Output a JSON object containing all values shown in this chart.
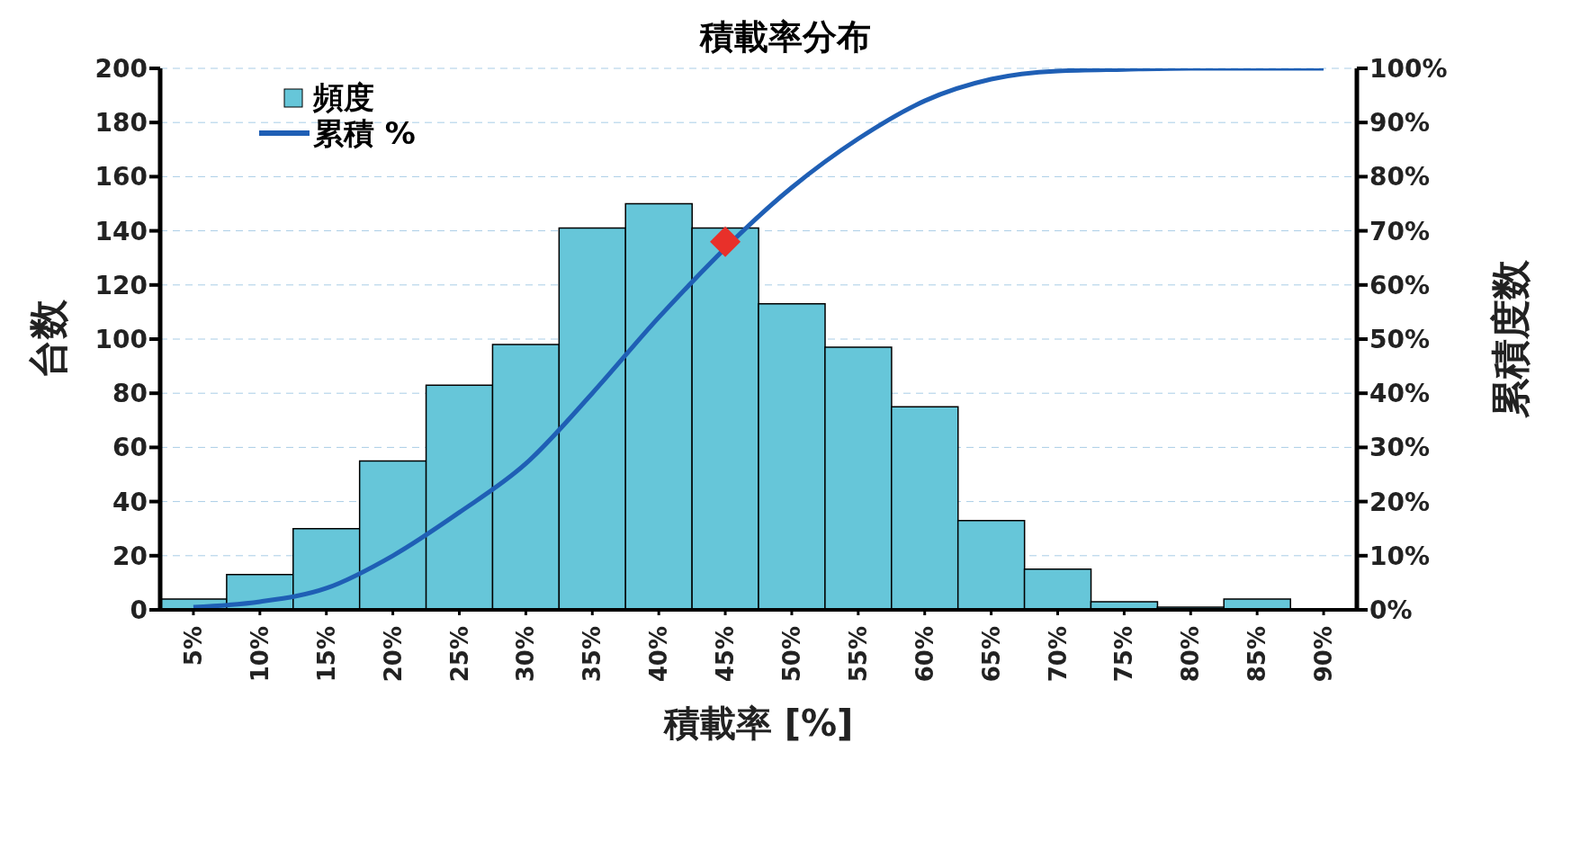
{
  "chart_data": {
    "type": "bar",
    "title": "積載率分布",
    "xlabel": "積載率 [%]",
    "ylabel": "台数",
    "y2label": "累積度数",
    "categories": [
      "5%",
      "10%",
      "15%",
      "20%",
      "25%",
      "30%",
      "35%",
      "40%",
      "45%",
      "50%",
      "55%",
      "60%",
      "65%",
      "70%",
      "75%",
      "80%",
      "85%",
      "90%"
    ],
    "series": [
      {
        "name": "頻度",
        "color": "#66c6d9",
        "values": [
          4,
          13,
          30,
          55,
          83,
          98,
          141,
          150,
          141,
          113,
          97,
          75,
          33,
          15,
          3,
          1,
          4,
          0
        ]
      },
      {
        "type": "line",
        "name": "累積 %",
        "color": "#1f5fb5",
        "axis": "y2",
        "values": [
          0.5,
          1.5,
          4,
          10,
          18,
          27,
          40,
          54,
          null,
          78,
          87,
          94,
          98,
          99.5,
          99.8,
          100,
          100,
          100
        ]
      },
      {
        "type": "scatter",
        "color": "#e8302a",
        "axis": "y2",
        "marker": "diamond",
        "values": [
          null,
          null,
          null,
          null,
          null,
          null,
          null,
          null,
          68,
          null,
          null,
          null,
          null,
          null,
          null,
          null,
          null,
          null
        ]
      }
    ],
    "ylim": [
      0,
      200
    ],
    "yticks": [
      0,
      20,
      40,
      60,
      80,
      100,
      120,
      140,
      160,
      180,
      200
    ],
    "y2lim": [
      0,
      100
    ],
    "y2ticks": [
      {
        "value": 0,
        "label": "0%"
      },
      {
        "value": 10,
        "label": "10%"
      },
      {
        "value": 20,
        "label": "20%"
      },
      {
        "value": 30,
        "label": "30%"
      },
      {
        "value": 40,
        "label": "40%"
      },
      {
        "value": 50,
        "label": "50%"
      },
      {
        "value": 60,
        "label": "60%"
      },
      {
        "value": 70,
        "label": "70%"
      },
      {
        "value": 80,
        "label": "80%"
      },
      {
        "value": 90,
        "label": "90%"
      },
      {
        "value": 100,
        "label": "100%"
      }
    ],
    "grid": "y",
    "legend": "top left"
  }
}
